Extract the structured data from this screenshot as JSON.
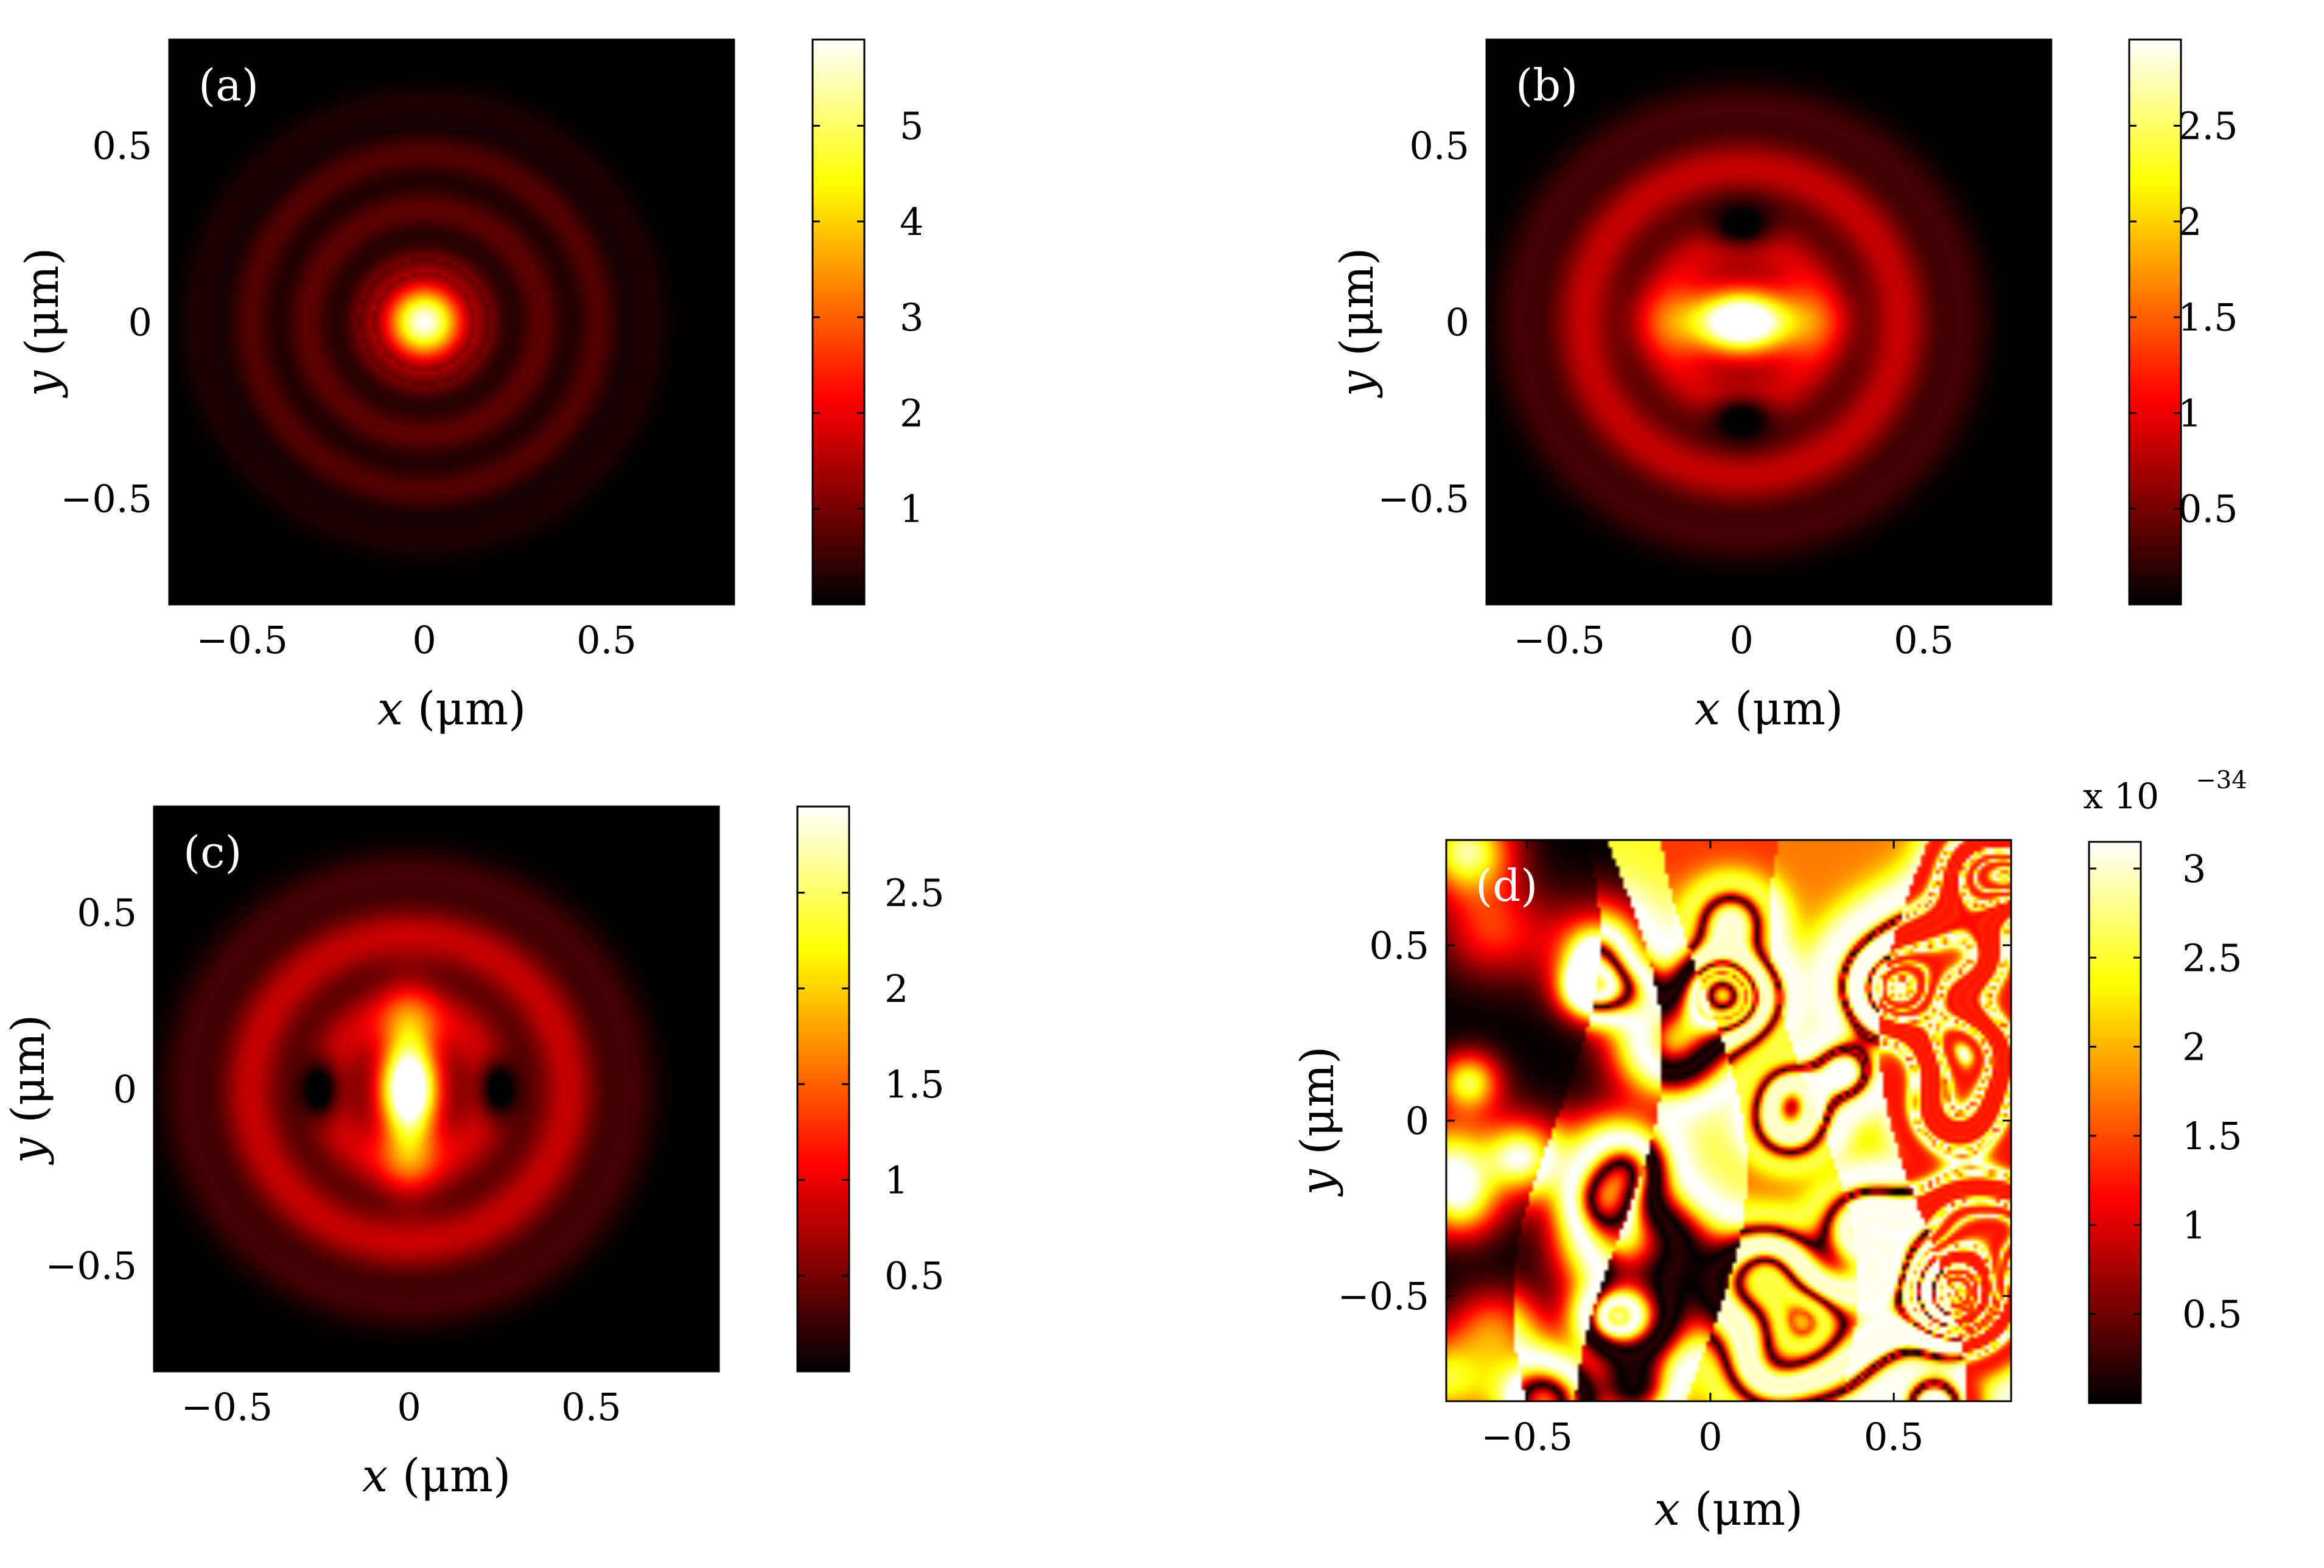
{
  "chart_data": [
    {
      "type": "heatmap",
      "panel_label": "(a)",
      "xlabel": "x (μm)",
      "ylabel": "y (μm)",
      "xlabel_parts": [
        "x",
        " (μm)"
      ],
      "ylabel_parts": [
        "y",
        " (μm)"
      ],
      "xlim": [
        -0.7,
        0.85
      ],
      "ylim": [
        -0.8,
        0.8
      ],
      "xticks": [
        -0.5,
        0,
        0.5
      ],
      "xtick_labels": [
        "−0.5",
        "0",
        "0.5"
      ],
      "yticks": [
        -0.5,
        0,
        0.5
      ],
      "ytick_labels": [
        "−0.5",
        "0",
        "0.5"
      ],
      "colorbar": {
        "range": [
          0,
          5.9
        ],
        "ticks": [
          1,
          2,
          3,
          4,
          5
        ],
        "tick_labels": [
          "1",
          "2",
          "3",
          "4",
          "5"
        ],
        "exponent_label": ""
      },
      "colormap": "hot",
      "pattern": "central Airy-like spot with concentric rings",
      "peak": 5.9
    },
    {
      "type": "heatmap",
      "panel_label": "(b)",
      "xlabel": "x (μm)",
      "ylabel": "y (μm)",
      "xlabel_parts": [
        "x",
        " (μm)"
      ],
      "ylabel_parts": [
        "y",
        " (μm)"
      ],
      "xlim": [
        -0.7,
        0.85
      ],
      "ylim": [
        -0.8,
        0.8
      ],
      "xticks": [
        -0.5,
        0,
        0.5
      ],
      "xtick_labels": [
        "−0.5",
        "0",
        "0.5"
      ],
      "yticks": [
        -0.5,
        0,
        0.5
      ],
      "ytick_labels": [
        "−0.5",
        "0",
        "0.5"
      ],
      "colorbar": {
        "range": [
          0,
          2.95
        ],
        "ticks": [
          0.5,
          1,
          1.5,
          2,
          2.5
        ],
        "tick_labels": [
          "0.5",
          "1",
          "1.5",
          "2",
          "2.5"
        ],
        "exponent_label": ""
      },
      "colormap": "hot",
      "pattern": "horizontally elongated central lobe with dark nulls above and below",
      "peak": 2.95
    },
    {
      "type": "heatmap",
      "panel_label": "(c)",
      "xlabel": "x (μm)",
      "ylabel": "y (μm)",
      "xlabel_parts": [
        "x",
        " (μm)"
      ],
      "ylabel_parts": [
        "y",
        " (μm)"
      ],
      "xlim": [
        -0.7,
        0.85
      ],
      "ylim": [
        -0.8,
        0.8
      ],
      "xticks": [
        -0.5,
        0,
        0.5
      ],
      "xtick_labels": [
        "−0.5",
        "0",
        "0.5"
      ],
      "yticks": [
        -0.5,
        0,
        0.5
      ],
      "ytick_labels": [
        "−0.5",
        "0",
        "0.5"
      ],
      "colorbar": {
        "range": [
          0,
          2.95
        ],
        "ticks": [
          0.5,
          1,
          1.5,
          2,
          2.5
        ],
        "tick_labels": [
          "0.5",
          "1",
          "1.5",
          "2",
          "2.5"
        ],
        "exponent_label": ""
      },
      "colormap": "hot",
      "pattern": "vertically elongated central lobe with dark nulls left and right",
      "peak": 2.95
    },
    {
      "type": "heatmap",
      "panel_label": "(d)",
      "xlabel": "x (μm)",
      "ylabel": "y (μm)",
      "xlabel_parts": [
        "x",
        " (μm)"
      ],
      "ylabel_parts": [
        "y",
        " (μm)"
      ],
      "xlim": [
        -0.72,
        0.82
      ],
      "ylim": [
        -0.8,
        0.8
      ],
      "xticks": [
        -0.5,
        0,
        0.5
      ],
      "xtick_labels": [
        "−0.5",
        "0",
        "0.5"
      ],
      "yticks": [
        -0.5,
        0,
        0.5
      ],
      "ytick_labels": [
        "−0.5",
        "0",
        "0.5"
      ],
      "colorbar": {
        "range": [
          0,
          3.15
        ],
        "ticks": [
          0.5,
          1,
          1.5,
          2,
          2.5,
          3
        ],
        "tick_labels": [
          "0.5",
          "1",
          "1.5",
          "2",
          "2.5",
          "3"
        ],
        "exponent_label": "x 10",
        "exponent_power": "−34"
      },
      "colormap": "hot",
      "pattern": "numerical noise speckle (values of order 1e-34)",
      "peak": 3.15
    }
  ]
}
